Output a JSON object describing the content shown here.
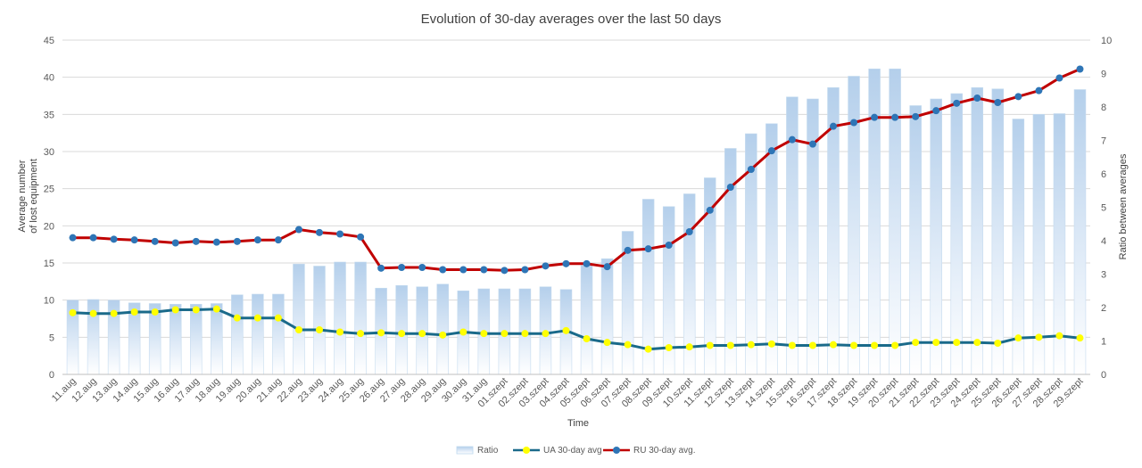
{
  "chart_data": {
    "type": "bar+line",
    "title": "Evolution of 30-day averages over the last 50 days",
    "xlabel": "Time",
    "ylabel_left": [
      "Average number",
      "of lost equipment"
    ],
    "ylabel_right": "Ratio between averages",
    "ylim_left": [
      0,
      45
    ],
    "ylim_right": [
      0,
      10
    ],
    "yticks_left": [
      "0",
      "5",
      "10",
      "15",
      "20",
      "25",
      "30",
      "35",
      "40",
      "45"
    ],
    "yticks_right": [
      "0",
      "1",
      "2",
      "3",
      "4",
      "5",
      "6",
      "7",
      "8",
      "9",
      "10"
    ],
    "grid": true,
    "legend_position": "bottom",
    "categories": [
      "11.aug",
      "12.aug",
      "13.aug",
      "14.aug",
      "15.aug",
      "16.aug",
      "17.aug",
      "18.aug",
      "19.aug",
      "20.aug",
      "21.aug",
      "22.aug",
      "23.aug",
      "24.aug",
      "25.aug",
      "26.aug",
      "27.aug",
      "28.aug",
      "29.aug",
      "30.aug",
      "31.aug",
      "01.szept",
      "02.szept",
      "03.szept",
      "04.szept",
      "05.szept",
      "06.szept",
      "07.szept",
      "08.szept",
      "09.szept",
      "10.szept",
      "11.szept",
      "12.szept",
      "13.szept",
      "14.szept",
      "15.szept",
      "16.szept",
      "17.szept",
      "18.szept",
      "19.szept",
      "20.szept",
      "21.szept",
      "22.szept",
      "23.szept",
      "24.szept",
      "25.szept",
      "26.szept",
      "27.szept",
      "28.szept",
      "29.szept"
    ],
    "series": [
      {
        "name": "Ratio",
        "kind": "bar",
        "axis": "right",
        "color": "#bdd7ee",
        "values": [
          2.22,
          2.24,
          2.22,
          2.14,
          2.12,
          2.1,
          2.1,
          2.12,
          2.38,
          2.4,
          2.4,
          3.3,
          3.24,
          3.36,
          3.36,
          2.58,
          2.66,
          2.62,
          2.7,
          2.5,
          2.56,
          2.56,
          2.56,
          2.62,
          2.54,
          3.26,
          3.46,
          4.28,
          5.24,
          5.02,
          5.4,
          5.88,
          6.76,
          7.2,
          7.5,
          8.3,
          8.24,
          8.58,
          8.92,
          9.14,
          9.14,
          8.04,
          8.24,
          8.4,
          8.58,
          8.54,
          7.64,
          7.78,
          7.8,
          8.52
        ]
      },
      {
        "name": "UA 30-day avg",
        "kind": "line",
        "axis": "left",
        "color": "#1a6a8a",
        "marker": "#ffff00",
        "values": [
          8.3,
          8.2,
          8.2,
          8.4,
          8.4,
          8.7,
          8.7,
          8.8,
          7.6,
          7.6,
          7.6,
          6.0,
          6.0,
          5.7,
          5.5,
          5.6,
          5.5,
          5.5,
          5.3,
          5.7,
          5.5,
          5.5,
          5.5,
          5.5,
          5.9,
          4.8,
          4.3,
          4.0,
          3.4,
          3.6,
          3.7,
          3.9,
          3.9,
          4.0,
          4.1,
          3.9,
          3.9,
          4.0,
          3.9,
          3.9,
          3.9,
          4.3,
          4.3,
          4.3,
          4.3,
          4.2,
          4.9,
          5.0,
          5.2,
          4.9
        ]
      },
      {
        "name": "RU 30-day avg.",
        "kind": "line",
        "axis": "left",
        "color": "#c00000",
        "marker": "#2e75b6",
        "values": [
          18.4,
          18.4,
          18.2,
          18.1,
          17.9,
          17.7,
          17.9,
          17.8,
          17.9,
          18.1,
          18.1,
          19.5,
          19.1,
          18.9,
          18.5,
          14.3,
          14.4,
          14.4,
          14.1,
          14.1,
          14.1,
          14.0,
          14.1,
          14.6,
          14.9,
          14.9,
          14.5,
          16.7,
          16.9,
          17.4,
          19.2,
          22.1,
          25.2,
          27.6,
          30.1,
          31.6,
          31.0,
          33.4,
          33.9,
          34.6,
          34.6,
          34.7,
          35.5,
          36.5,
          37.2,
          36.6,
          37.4,
          38.2,
          39.9,
          41.1
        ]
      }
    ]
  }
}
